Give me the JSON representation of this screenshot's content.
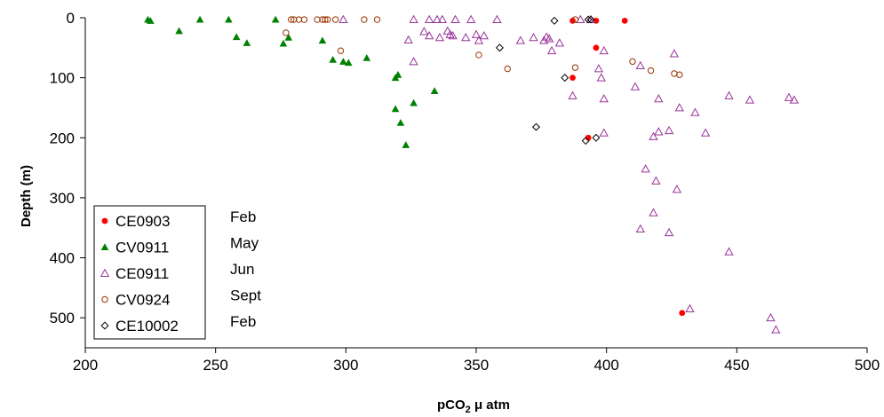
{
  "chart_data": {
    "type": "scatter",
    "xlabel": "pCO",
    "xlabel_sub": "2",
    "xlabel_rest": " μ atm",
    "ylabel": "Depth (m)",
    "xlim": [
      200,
      500
    ],
    "ylim": [
      0,
      550
    ],
    "y_inverted": true,
    "x_ticks": [
      200,
      250,
      300,
      350,
      400,
      450,
      500
    ],
    "y_ticks": [
      0,
      100,
      200,
      300,
      400,
      500
    ],
    "grid": false,
    "legend_position": "bottom-left",
    "series": [
      {
        "name": "CE0903",
        "month": "Feb",
        "marker": "filled-circle",
        "color": "#ff0000",
        "points": [
          [
            387,
            5
          ],
          [
            396,
            5
          ],
          [
            407,
            5
          ],
          [
            396,
            50
          ],
          [
            387,
            100
          ],
          [
            393,
            200
          ],
          [
            429,
            492
          ]
        ]
      },
      {
        "name": "CV0911",
        "month": "May",
        "marker": "filled-triangle",
        "color": "#008000",
        "points": [
          [
            224,
            3
          ],
          [
            225,
            5
          ],
          [
            236,
            22
          ],
          [
            244,
            3
          ],
          [
            255,
            3
          ],
          [
            258,
            32
          ],
          [
            262,
            42
          ],
          [
            273,
            3
          ],
          [
            276,
            43
          ],
          [
            278,
            33
          ],
          [
            291,
            38
          ],
          [
            295,
            70
          ],
          [
            299,
            73
          ],
          [
            301,
            75
          ],
          [
            308,
            67
          ],
          [
            319,
            100
          ],
          [
            320,
            95
          ],
          [
            319,
            152
          ],
          [
            321,
            175
          ],
          [
            323,
            212
          ],
          [
            326,
            142
          ],
          [
            334,
            122
          ]
        ]
      },
      {
        "name": "CE0911",
        "month": "Jun",
        "marker": "open-triangle",
        "color": "#993399",
        "points": [
          [
            299,
            3
          ],
          [
            326,
            3
          ],
          [
            332,
            3
          ],
          [
            335,
            3
          ],
          [
            337,
            3
          ],
          [
            342,
            3
          ],
          [
            348,
            3
          ],
          [
            324,
            37
          ],
          [
            326,
            73
          ],
          [
            330,
            23
          ],
          [
            332,
            30
          ],
          [
            336,
            33
          ],
          [
            339,
            22
          ],
          [
            340,
            28
          ],
          [
            341,
            30
          ],
          [
            346,
            33
          ],
          [
            350,
            28
          ],
          [
            351,
            38
          ],
          [
            353,
            30
          ],
          [
            358,
            3
          ],
          [
            367,
            38
          ],
          [
            372,
            33
          ],
          [
            376,
            38
          ],
          [
            377,
            32
          ],
          [
            378,
            35
          ],
          [
            379,
            55
          ],
          [
            382,
            42
          ],
          [
            387,
            130
          ],
          [
            390,
            3
          ],
          [
            394,
            3
          ],
          [
            397,
            85
          ],
          [
            398,
            100
          ],
          [
            399,
            55
          ],
          [
            399,
            135
          ],
          [
            399,
            192
          ],
          [
            411,
            115
          ],
          [
            413,
            80
          ],
          [
            413,
            352
          ],
          [
            415,
            252
          ],
          [
            418,
            198
          ],
          [
            418,
            325
          ],
          [
            419,
            272
          ],
          [
            420,
            190
          ],
          [
            420,
            135
          ],
          [
            424,
            188
          ],
          [
            424,
            358
          ],
          [
            426,
            60
          ],
          [
            427,
            286
          ],
          [
            428,
            150
          ],
          [
            432,
            485
          ],
          [
            434,
            158
          ],
          [
            438,
            192
          ],
          [
            447,
            130
          ],
          [
            447,
            390
          ],
          [
            455,
            137
          ],
          [
            463,
            500
          ],
          [
            465,
            520
          ],
          [
            470,
            133
          ],
          [
            472,
            137
          ]
        ]
      },
      {
        "name": "CV0924",
        "month": "Sept",
        "marker": "open-circle",
        "color": "#993300",
        "points": [
          [
            277,
            25
          ],
          [
            279,
            3
          ],
          [
            280,
            3
          ],
          [
            282,
            3
          ],
          [
            284,
            3
          ],
          [
            289,
            3
          ],
          [
            291,
            3
          ],
          [
            292,
            3
          ],
          [
            293,
            3
          ],
          [
            296,
            3
          ],
          [
            298,
            55
          ],
          [
            307,
            3
          ],
          [
            312,
            3
          ],
          [
            351,
            62
          ],
          [
            362,
            85
          ],
          [
            388,
            83
          ],
          [
            388,
            3
          ],
          [
            410,
            73
          ],
          [
            417,
            88
          ],
          [
            426,
            93
          ],
          [
            428,
            95
          ]
        ]
      },
      {
        "name": "CE10002",
        "month": "Feb",
        "marker": "open-diamond",
        "color": "#000000",
        "points": [
          [
            359,
            50
          ],
          [
            373,
            182
          ],
          [
            380,
            5
          ],
          [
            384,
            100
          ],
          [
            392,
            205
          ],
          [
            393,
            3
          ],
          [
            394,
            3
          ],
          [
            396,
            200
          ]
        ]
      }
    ]
  }
}
